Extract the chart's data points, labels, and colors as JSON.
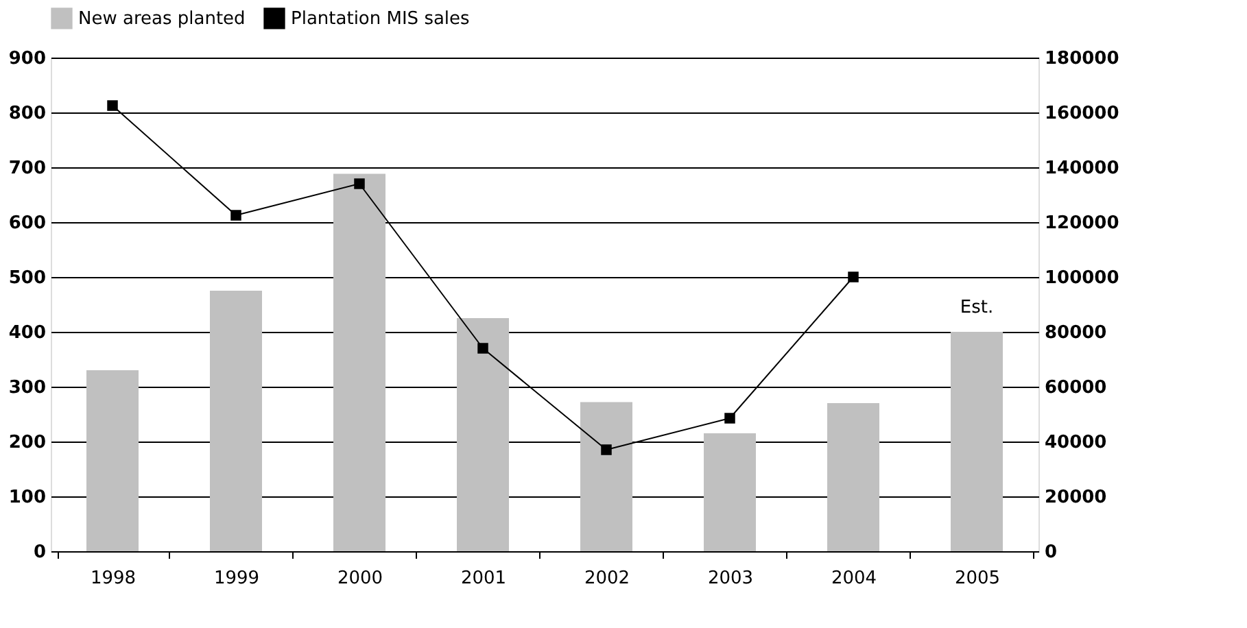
{
  "chart_data": {
    "type": "bar",
    "categories": [
      "1998",
      "1999",
      "2000",
      "2001",
      "2002",
      "2003",
      "2004",
      "2005"
    ],
    "series": [
      {
        "name": "New areas planted",
        "color": "#c0c0c0",
        "values": [
          330,
          475,
          688,
          425,
          272,
          215,
          270,
          400
        ]
      },
      {
        "name": "Plantation MIS sales",
        "type": "line",
        "axis": "y2",
        "color": "#000000",
        "marker": "square",
        "values": [
          162500,
          122500,
          134000,
          74000,
          37000,
          48500,
          100000,
          null
        ]
      }
    ],
    "ylim": [
      0,
      900
    ],
    "yticks": [
      0,
      100,
      200,
      300,
      400,
      500,
      600,
      700,
      800,
      900
    ],
    "y2lim": [
      0,
      180000
    ],
    "y2ticks": [
      0,
      20000,
      40000,
      60000,
      80000,
      100000,
      120000,
      140000,
      160000,
      180000
    ],
    "grid": "y",
    "legend": "top",
    "annotations": [
      "Est."
    ]
  }
}
